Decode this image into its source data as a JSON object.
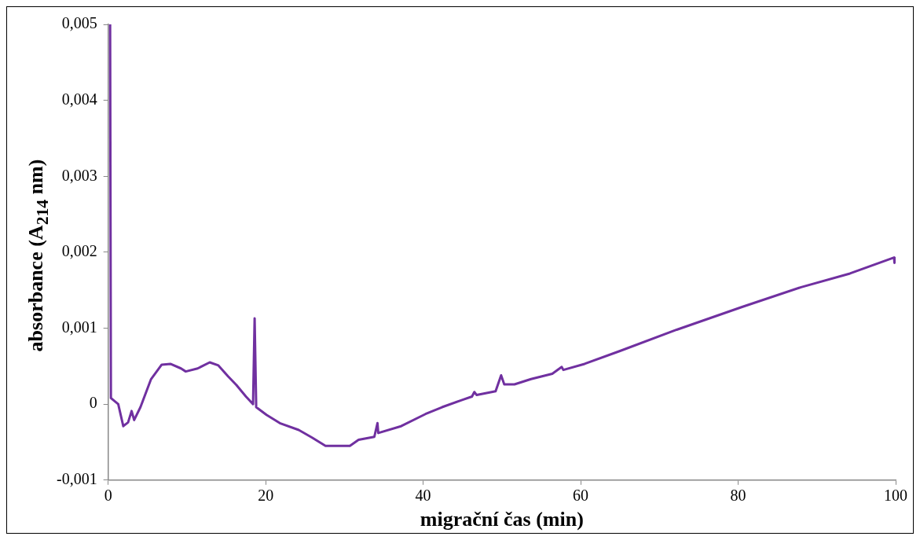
{
  "chart_data": {
    "type": "line",
    "xlabel": "migrační čas (min)",
    "ylabel": "absorbance (A$_{214}$ nm)",
    "xlim": [
      0,
      100
    ],
    "xticks": [
      0,
      20,
      40,
      60,
      80,
      100
    ],
    "ylim": [
      -0.001,
      0.005
    ],
    "yticks": [
      {
        "value": -0.001,
        "label": "-0,001"
      },
      {
        "value": 0,
        "label": "0"
      },
      {
        "value": 0.001,
        "label": "0,001"
      },
      {
        "value": 0.002,
        "label": "0,002"
      },
      {
        "value": 0.003,
        "label": "0,003"
      },
      {
        "value": 0.004,
        "label": "0,004"
      },
      {
        "value": 0.005,
        "label": "0,005"
      }
    ],
    "grid": false,
    "legend": false,
    "series": [
      {
        "color": "#7030a0",
        "x": [
          0.25,
          0.35,
          1.28,
          1.92,
          2.53,
          2.98,
          3.3,
          4.1,
          5.45,
          6.8,
          7.9,
          9.25,
          9.85,
          11.37,
          12.9,
          14.0,
          15.2,
          16.3,
          17.5,
          18.4,
          18.6,
          18.8,
          20.1,
          21.8,
          24.2,
          25.9,
          27.6,
          29.0,
          30.7,
          31.8,
          33.8,
          34.2,
          34.3,
          37.2,
          40.3,
          42.4,
          44.8,
          46.2,
          46.5,
          46.8,
          49.2,
          49.9,
          50.3,
          51.6,
          53.7,
          56.4,
          57.6,
          57.8,
          60.5,
          65.0,
          72.2,
          80.5,
          88.0,
          94.2,
          99.8,
          99.85,
          100
        ],
        "values": [
          0.005,
          8e-05,
          0.0,
          -0.00029,
          -0.00024,
          -9e-05,
          -0.00021,
          -4e-05,
          0.00033,
          0.00052,
          0.00053,
          0.00047,
          0.00043,
          0.00047,
          0.00055,
          0.00051,
          0.00037,
          0.00025,
          0.0001,
          0.0,
          0.00113,
          -4e-05,
          -0.00014,
          -0.00025,
          -0.00034,
          -0.00044,
          -0.00055,
          -0.00055,
          -0.00055,
          -0.00047,
          -0.00043,
          -0.00025,
          -0.00038,
          -0.00029,
          -0.00013,
          -4e-05,
          5e-05,
          0.0001,
          0.00016,
          0.00012,
          0.00017,
          0.00038,
          0.00026,
          0.00026,
          0.00033,
          0.0004,
          0.00049,
          0.00045,
          0.00053,
          0.0007,
          0.00098,
          0.00128,
          0.00154,
          0.00172,
          0.00193,
          0.00186,
          0.00194
        ]
      }
    ]
  }
}
